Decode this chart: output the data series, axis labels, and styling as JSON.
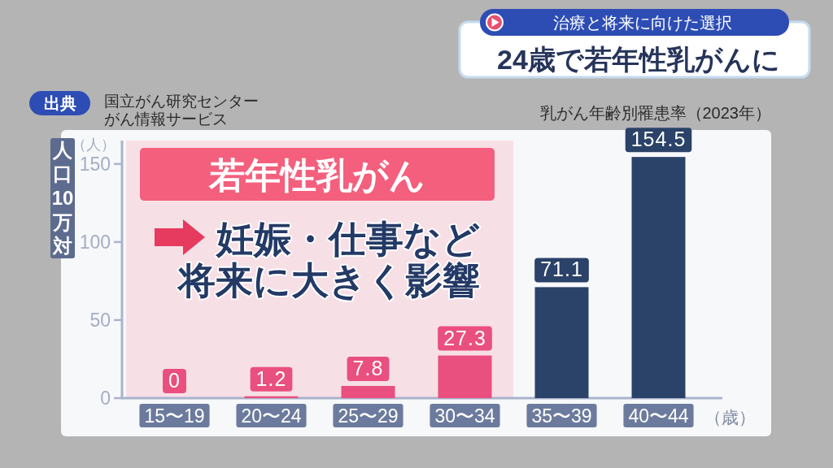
{
  "chart_data": {
    "type": "bar",
    "title": "乳がん年齢別罹患率（2023年）",
    "ylabel": "人口10万対",
    "xlabel": "（歳）",
    "categories": [
      "15〜19",
      "20〜24",
      "25〜29",
      "30〜34",
      "35〜39",
      "40〜44"
    ],
    "values": [
      0,
      1.2,
      7.8,
      27.3,
      71.1,
      154.5
    ],
    "colors": [
      "#e94f7f",
      "#e94f7f",
      "#e94f7f",
      "#e94f7f",
      "#2b4269",
      "#2b4269"
    ],
    "ylim": [
      0,
      165
    ],
    "yticks": [
      0,
      50,
      100,
      150
    ],
    "data_labels": true,
    "bands": [
      {
        "axis": "x",
        "from": "15〜19",
        "to": "30〜34",
        "label": "若年性乳がん",
        "color": "#f7dfe6"
      }
    ],
    "annotations": [
      "治療と将来に向けた選択",
      "24歳で若年性乳がんに",
      "出典",
      "国立がん研究センター",
      "がん情報サービス",
      "（人）",
      "妊娠・仕事など",
      "将来に大きく影響"
    ]
  }
}
